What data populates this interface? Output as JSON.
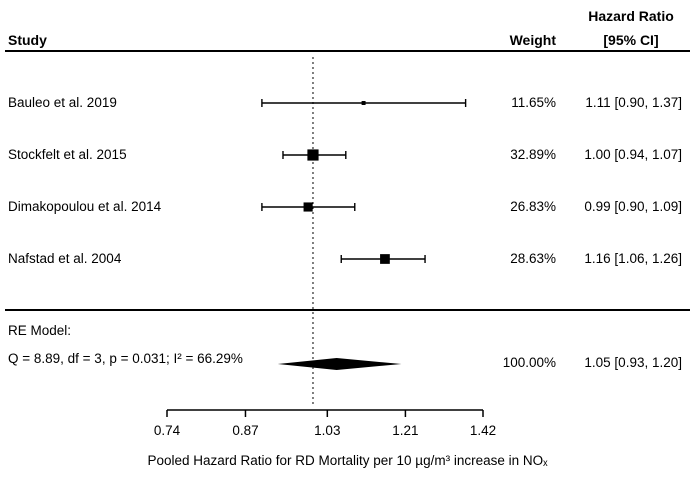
{
  "header": {
    "study_col": "Study",
    "weight_col": "Weight",
    "hr_col_line1": "Hazard Ratio",
    "hr_col_line2": "[95% CI]"
  },
  "chart_data": {
    "type": "forest",
    "x_scale": "log",
    "x_ticks": [
      0.74,
      0.87,
      1.03,
      1.21,
      1.42
    ],
    "ref_line": 1.0,
    "xlabel": "Pooled Hazard Ratio for RD Mortality per 10 µg/m³ increase in NOₓ",
    "studies": [
      {
        "label": "Bauleo et al. 2019",
        "weight": "11.65%",
        "weight_value": 11.65,
        "estimate": 1.11,
        "ci_low": 0.9,
        "ci_high": 1.37,
        "ci_text": "1.11 [0.90, 1.37]"
      },
      {
        "label": "Stockfelt et al. 2015",
        "weight": "32.89%",
        "weight_value": 32.89,
        "estimate": 1.0,
        "ci_low": 0.94,
        "ci_high": 1.07,
        "ci_text": "1.00 [0.94, 1.07]"
      },
      {
        "label": "Dimakopoulou et al. 2014",
        "weight": "26.83%",
        "weight_value": 26.83,
        "estimate": 0.99,
        "ci_low": 0.9,
        "ci_high": 1.09,
        "ci_text": "0.99 [0.90, 1.09]"
      },
      {
        "label": "Nafstad et al. 2004",
        "weight": "28.63%",
        "weight_value": 28.63,
        "estimate": 1.16,
        "ci_low": 1.06,
        "ci_high": 1.26,
        "ci_text": "1.16 [1.06, 1.26]"
      }
    ],
    "summary": {
      "label_line1": "RE Model:",
      "label_line2": "Q = 8.89, df = 3, p = 0.031; I² = 66.29%",
      "weight": "100.00%",
      "estimate": 1.05,
      "ci_low": 0.93,
      "ci_high": 1.2,
      "ci_text": "1.05 [0.93, 1.20]"
    }
  }
}
